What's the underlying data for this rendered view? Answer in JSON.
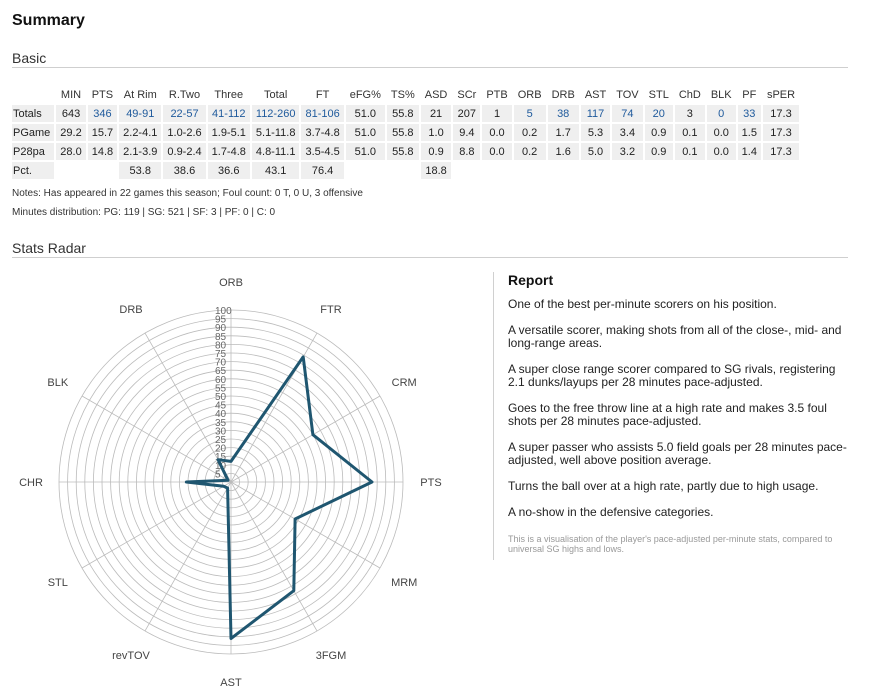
{
  "page": {
    "title": "Summary",
    "basic_heading": "Basic",
    "radar_heading": "Stats Radar"
  },
  "table": {
    "headers": [
      "",
      "MIN",
      "PTS",
      "At Rim",
      "R.Two",
      "Three",
      "Total",
      "FT",
      "eFG%",
      "TS%",
      "ASD",
      "SCr",
      "PTB",
      "ORB",
      "DRB",
      "AST",
      "TOV",
      "STL",
      "ChD",
      "BLK",
      "PF",
      "sPER"
    ],
    "rows": [
      [
        "Totals",
        "643",
        "346",
        "49-91",
        "22-57",
        "41-112",
        "112-260",
        "81-106",
        "51.0",
        "55.8",
        "21",
        "207",
        "1",
        "5",
        "38",
        "117",
        "74",
        "20",
        "3",
        "0",
        "33",
        "17.3"
      ],
      [
        "PGame",
        "29.2",
        "15.7",
        "2.2-4.1",
        "1.0-2.6",
        "1.9-5.1",
        "5.1-11.8",
        "3.7-4.8",
        "51.0",
        "55.8",
        "1.0",
        "9.4",
        "0.0",
        "0.2",
        "1.7",
        "5.3",
        "3.4",
        "0.9",
        "0.1",
        "0.0",
        "1.5",
        "17.3"
      ],
      [
        "P28pa",
        "28.0",
        "14.8",
        "2.1-3.9",
        "0.9-2.4",
        "1.7-4.8",
        "4.8-11.1",
        "3.5-4.5",
        "51.0",
        "55.8",
        "0.9",
        "8.8",
        "0.0",
        "0.2",
        "1.6",
        "5.0",
        "3.2",
        "0.9",
        "0.1",
        "0.0",
        "1.4",
        "17.3"
      ],
      [
        "Pct.",
        "",
        "",
        "53.8",
        "38.6",
        "36.6",
        "43.1",
        "76.4",
        "",
        "",
        "18.8",
        "",
        "",
        "",
        "",
        "",
        "",
        "",
        "",
        "",
        "",
        ""
      ]
    ],
    "link_cells": [
      [
        0,
        2
      ],
      [
        0,
        3
      ],
      [
        0,
        4
      ],
      [
        0,
        5
      ],
      [
        0,
        6
      ],
      [
        0,
        7
      ],
      [
        0,
        13
      ],
      [
        0,
        14
      ],
      [
        0,
        15
      ],
      [
        0,
        16
      ],
      [
        0,
        17
      ],
      [
        0,
        19
      ],
      [
        0,
        20
      ]
    ],
    "link_color": "#1f5a9c"
  },
  "notes": {
    "line1": "Notes: Has appeared in 22 games this season; Foul count: 0 T, 0 U, 3 offensive",
    "line2": "Minutes distribution: PG: 119 | SG: 521 | SF: 3 | PF: 0 | C: 0"
  },
  "report": {
    "title": "Report",
    "paragraphs": [
      "One of the best per-minute scorers on his position.",
      "A versatile scorer, making shots from all of the close-, mid- and long-range areas.",
      "A super close range scorer compared to SG rivals, registering 2.1 dunks/layups per 28 minutes pace-adjusted.",
      "Goes to the free throw line at a high rate and makes 3.5 foul shots per 28 minutes pace-adjusted.",
      "A super passer who assists 5.0 field goals per 28 minutes pace-adjusted, well above position average.",
      "Turns the ball over at a high rate, partly due to high usage.",
      "A no-show in the defensive categories."
    ],
    "footnote": "This is a visualisation of the player's pace-adjusted per-minute stats, compared to universal SG highs and lows."
  },
  "chart_data": {
    "type": "radar",
    "axes": [
      "ORB",
      "FTR",
      "CRM",
      "PTS",
      "MRM",
      "3FGM",
      "AST",
      "revTOV",
      "STL",
      "CHR",
      "BLK",
      "DRB"
    ],
    "values": [
      12,
      84,
      55,
      82,
      43,
      73,
      91,
      4,
      5,
      26,
      2,
      15
    ],
    "rlim": [
      0,
      100
    ],
    "ring_labels": [
      "100",
      "95",
      "90",
      "85",
      "80",
      "75",
      "70",
      "65",
      "60",
      "55",
      "50",
      "45",
      "40",
      "35",
      "30",
      "25",
      "20",
      "15",
      "10",
      "5"
    ],
    "grid": true,
    "line_color": "#1f5670",
    "grid_color": "#bbbbbb"
  }
}
